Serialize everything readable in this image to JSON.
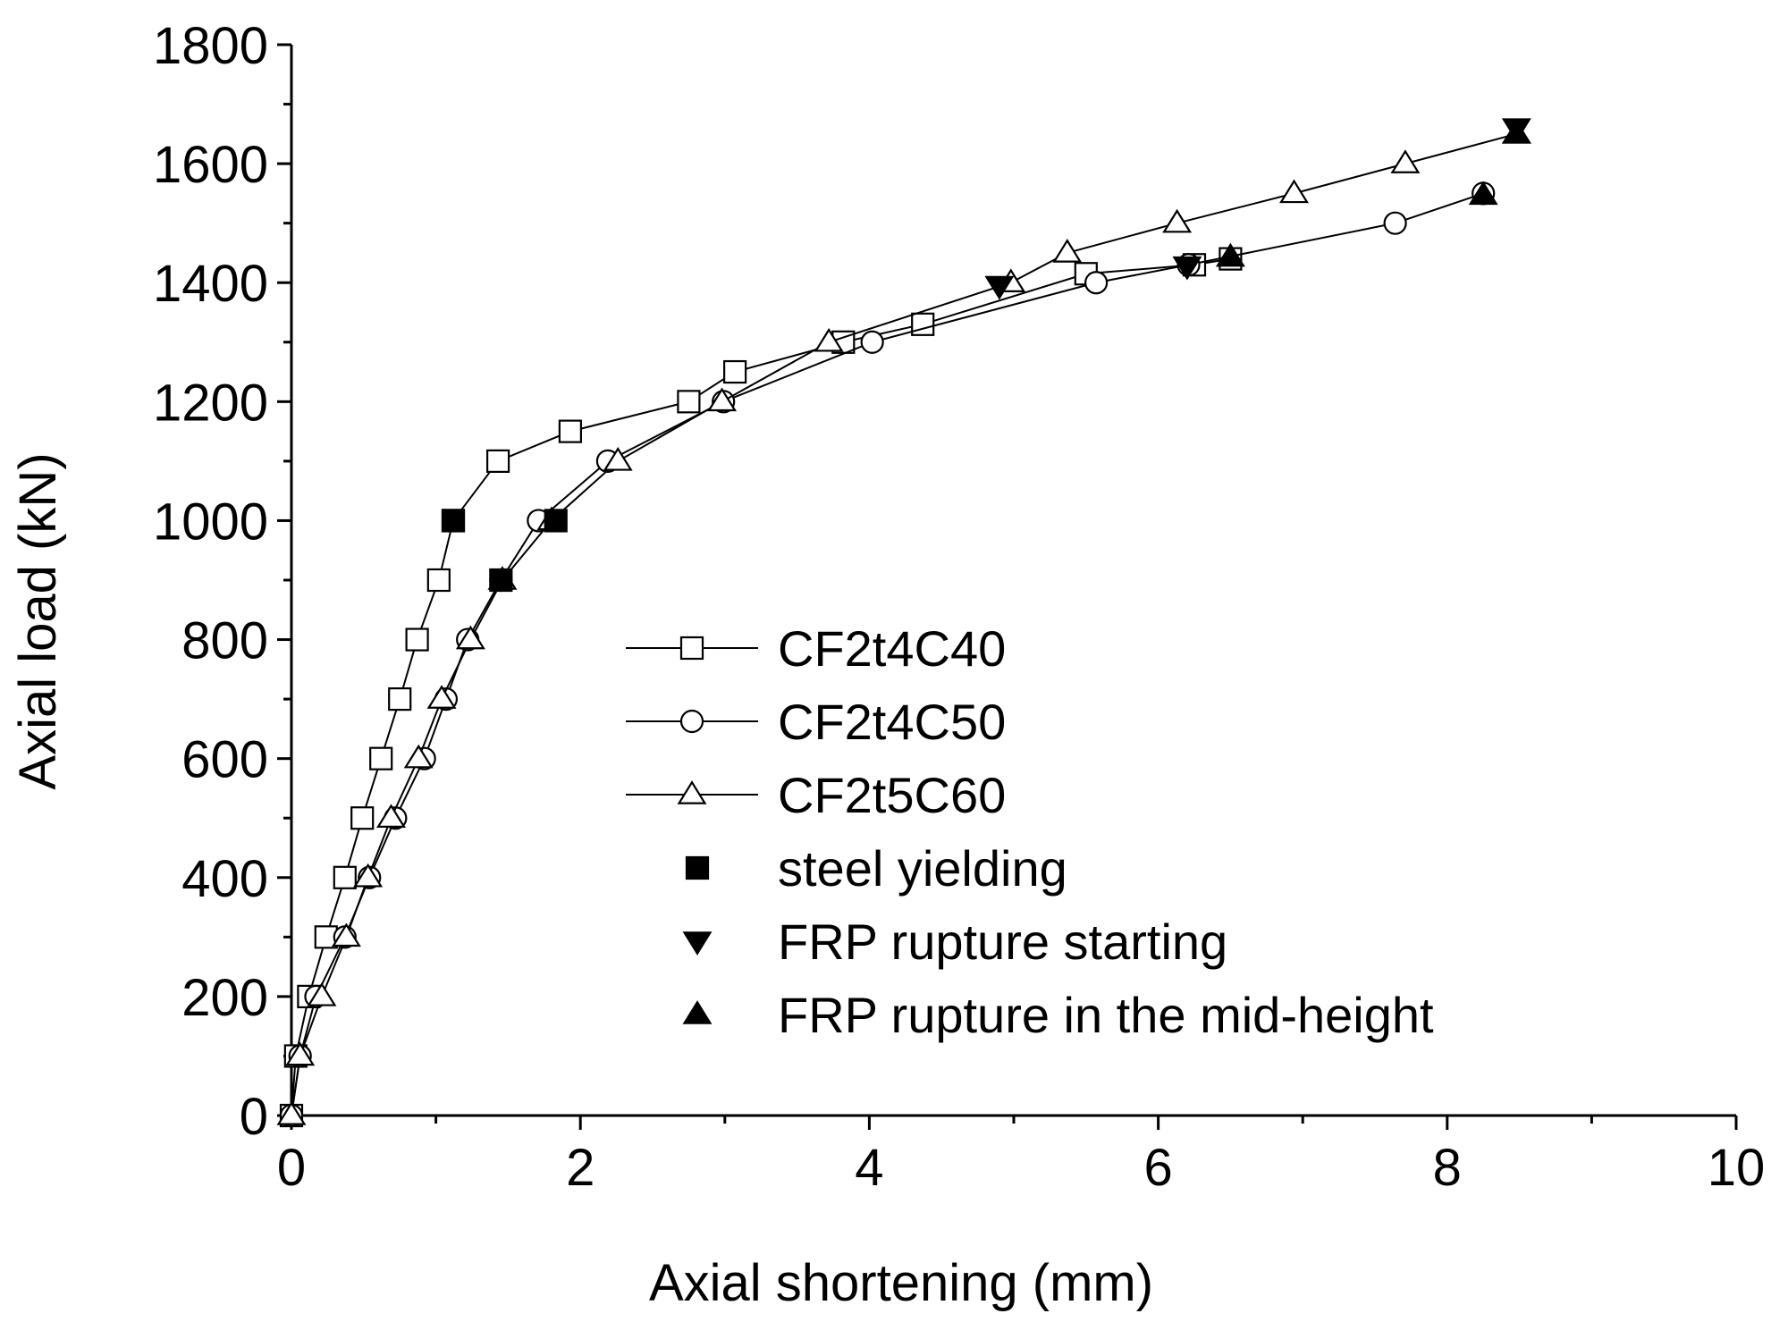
{
  "chart_data": {
    "type": "line",
    "title": "",
    "xlabel": "Axial shortening (mm)",
    "ylabel": "Axial load (kN)",
    "xlim": [
      0,
      10
    ],
    "ylim": [
      0,
      1800
    ],
    "xticks": [
      0,
      2,
      4,
      6,
      8,
      10
    ],
    "yticks": [
      0,
      200,
      400,
      600,
      800,
      1000,
      1200,
      1400,
      1600,
      1800
    ],
    "grid": false,
    "legend_position": "center",
    "series": [
      {
        "name": "CF2t4C40",
        "marker": "square",
        "x": [
          0.0,
          0.03,
          0.12,
          0.24,
          0.37,
          0.49,
          0.62,
          0.75,
          0.87,
          1.02,
          1.12,
          1.43,
          1.93,
          2.75,
          3.07,
          3.82,
          4.37,
          5.5,
          6.25,
          6.5
        ],
        "y": [
          0,
          100,
          200,
          300,
          400,
          500,
          600,
          700,
          800,
          900,
          1000,
          1100,
          1150,
          1200,
          1250,
          1300,
          1330,
          1415,
          1430,
          1440
        ]
      },
      {
        "name": "CF2t4C50",
        "marker": "circle",
        "x": [
          0.0,
          0.06,
          0.17,
          0.37,
          0.54,
          0.72,
          0.92,
          1.07,
          1.22,
          1.45,
          1.71,
          2.19,
          2.99,
          4.02,
          5.57,
          6.21,
          7.64,
          8.25
        ],
        "y": [
          0,
          100,
          200,
          300,
          400,
          500,
          600,
          700,
          800,
          900,
          1000,
          1100,
          1200,
          1300,
          1400,
          1430,
          1500,
          1550
        ]
      },
      {
        "name": "CF2t5C60",
        "marker": "triangle",
        "x": [
          0.0,
          0.06,
          0.21,
          0.38,
          0.53,
          0.69,
          0.88,
          1.04,
          1.24,
          1.46,
          1.8,
          2.26,
          2.98,
          3.72,
          4.98,
          5.37,
          6.13,
          6.94,
          7.71,
          8.48
        ],
        "y": [
          0,
          100,
          200,
          300,
          400,
          500,
          600,
          700,
          800,
          900,
          1000,
          1100,
          1200,
          1300,
          1400,
          1450,
          1500,
          1550,
          1600,
          1650
        ]
      }
    ],
    "events": [
      {
        "type": "steel-yielding",
        "marker": "filled-square",
        "points": [
          [
            1.12,
            1000
          ],
          [
            1.83,
            1000
          ],
          [
            1.45,
            900
          ]
        ]
      },
      {
        "type": "frp-rupture-starting",
        "marker": "filled-triangle-down",
        "points": [
          [
            4.9,
            1395
          ],
          [
            6.2,
            1428
          ],
          [
            8.48,
            1660
          ]
        ]
      },
      {
        "type": "frp-rupture-mid-height",
        "marker": "filled-triangle-up",
        "points": [
          [
            6.5,
            1443
          ],
          [
            8.25,
            1547
          ],
          [
            8.48,
            1650
          ]
        ]
      }
    ],
    "legend": [
      {
        "label": "CF2t4C40",
        "symbol": "line-square"
      },
      {
        "label": "CF2t4C50",
        "symbol": "line-circle"
      },
      {
        "label": "CF2t5C60",
        "symbol": "line-triangle"
      },
      {
        "label": "steel yielding",
        "symbol": "filled-square"
      },
      {
        "label": "FRP rupture starting",
        "symbol": "filled-triangle-down"
      },
      {
        "label": "FRP rupture in the mid-height",
        "symbol": "filled-triangle-up"
      }
    ]
  }
}
